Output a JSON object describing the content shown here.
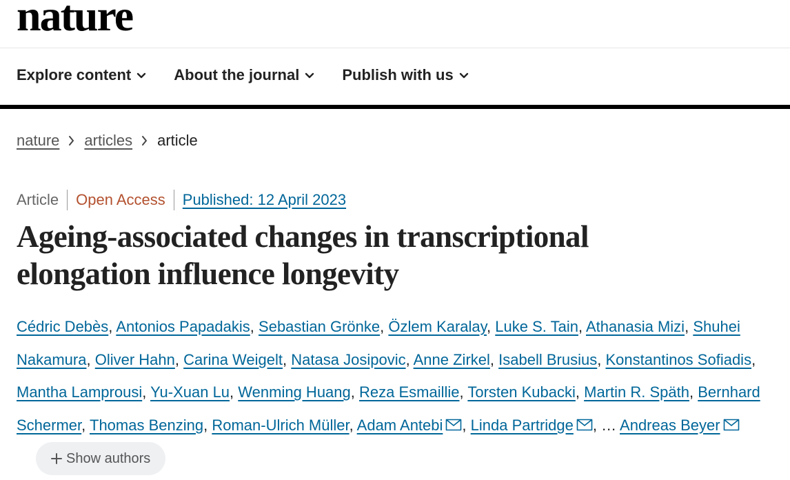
{
  "logo": "nature",
  "nav": [
    "Explore content",
    "About the journal",
    "Publish with us"
  ],
  "breadcrumb": [
    "nature",
    "articles",
    "article"
  ],
  "meta": {
    "type": "Article",
    "access": "Open Access",
    "published": "Published: 12 April 2023"
  },
  "title": "Ageing-associated changes in transcriptional elongation influence longevity",
  "authors": [
    {
      "name": "Cédric Debès",
      "separator": ","
    },
    {
      "name": "Antonios Papadakis",
      "separator": ","
    },
    {
      "name": "Sebastian Grönke",
      "separator": ","
    },
    {
      "name": "Özlem Karalay",
      "separator": ","
    },
    {
      "name": "Luke S. Tain",
      "separator": ","
    },
    {
      "name": "Athanasia Mizi",
      "separator": ","
    },
    {
      "name": "Shuhei Nakamura",
      "separator": ","
    },
    {
      "name": "Oliver Hahn",
      "separator": ","
    },
    {
      "name": "Carina Weigelt",
      "separator": ","
    },
    {
      "name": "Natasa Josipovic",
      "separator": ","
    },
    {
      "name": "Anne Zirkel",
      "separator": ","
    },
    {
      "name": "Isabell Brusius",
      "separator": ","
    },
    {
      "name": "Konstantinos Sofiadis",
      "separator": ","
    },
    {
      "name": "Mantha Lamprousi",
      "separator": ","
    },
    {
      "name": "Yu-Xuan Lu",
      "separator": ","
    },
    {
      "name": "Wenming Huang",
      "separator": ","
    },
    {
      "name": "Reza Esmaillie",
      "separator": ","
    },
    {
      "name": "Torsten Kubacki",
      "separator": ","
    },
    {
      "name": "Martin R. Späth",
      "separator": ","
    },
    {
      "name": "Bernhard Schermer",
      "separator": ","
    },
    {
      "name": "Thomas Benzing",
      "separator": ","
    },
    {
      "name": "Roman-Ulrich Müller",
      "separator": ","
    },
    {
      "name": "Adam Antebi",
      "separator": ",",
      "email": true
    },
    {
      "name": "Linda Partridge",
      "separator": ",",
      "email": true
    },
    {
      "name": "Andreas Beyer",
      "email": true
    }
  ],
  "ellipsis": "…",
  "show_authors": "Show authors"
}
